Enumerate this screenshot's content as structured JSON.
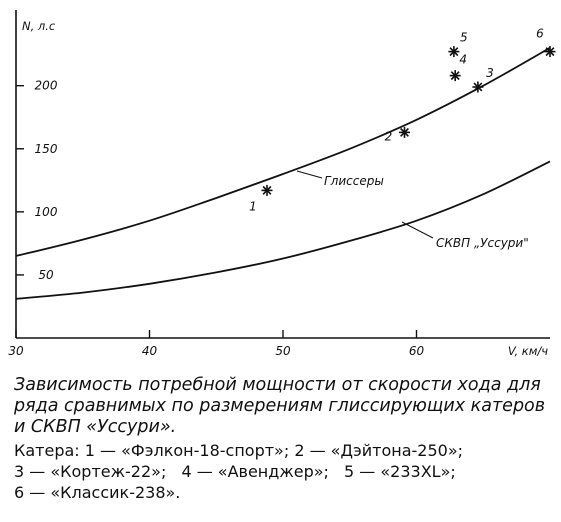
{
  "chart_data": {
    "type": "line",
    "ylabel": "N, л.с",
    "xlabel": "V, км/ч",
    "xlim": [
      30,
      70
    ],
    "ylim": [
      0,
      260
    ],
    "x_ticks": [
      30,
      40,
      50,
      60
    ],
    "y_ticks": [
      50,
      100,
      150,
      200
    ],
    "grid": false,
    "series": [
      {
        "name": "Глиссеры",
        "x": [
          30,
          35,
          40,
          45,
          50,
          55,
          60,
          65,
          70
        ],
        "y": [
          65,
          78,
          93,
          111,
          130,
          150,
          173,
          200,
          230
        ]
      },
      {
        "name": "СКВП „Уссури\"",
        "x": [
          30,
          35,
          40,
          45,
          50,
          55,
          60,
          65,
          70
        ],
        "y": [
          31,
          36,
          43,
          52,
          63,
          77,
          93,
          114,
          140
        ]
      }
    ],
    "points": [
      {
        "label": "1",
        "x": 48.8,
        "y": 117
      },
      {
        "label": "2",
        "x": 59.1,
        "y": 163
      },
      {
        "label": "3",
        "x": 64.6,
        "y": 199
      },
      {
        "label": "4",
        "x": 62.9,
        "y": 208
      },
      {
        "label": "5",
        "x": 62.8,
        "y": 227
      },
      {
        "label": "6",
        "x": 70.0,
        "y": 227
      }
    ]
  },
  "caption": {
    "main": "Зависимость потребной мощности от скорости хода для ряда сравнимых по размерениям глиссирующих катеров и СКВП «Уссури».",
    "legend_title": "Катера:",
    "legend": [
      "1 — «Фэлкон-18-спорт»;",
      "2 — «Дэйтона-250»;",
      "3 — «Кортеж-22»;",
      "4 — «Авенджер»;",
      "5 — «233XL»;",
      "6 — «Классик-238»."
    ]
  }
}
